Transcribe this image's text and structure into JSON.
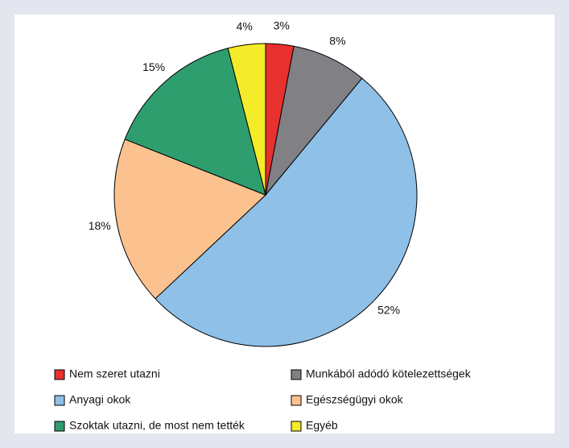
{
  "chart_data": {
    "type": "pie",
    "categories": [
      "Nem szeret utazni",
      "Munkából adódó kötelezettségek",
      "Anyagi okok",
      "Egészségügyi okok",
      "Szoktak utazni, de most nem tették",
      "Egyéb"
    ],
    "values": [
      3,
      8,
      52,
      18,
      15,
      4
    ],
    "value_labels": [
      "3%",
      "8%",
      "52%",
      "18%",
      "15%",
      "4%"
    ],
    "colors": [
      "#e8302e",
      "#808085",
      "#8ec0e8",
      "#fbc290",
      "#2e9e6f",
      "#f4eb2a"
    ]
  }
}
